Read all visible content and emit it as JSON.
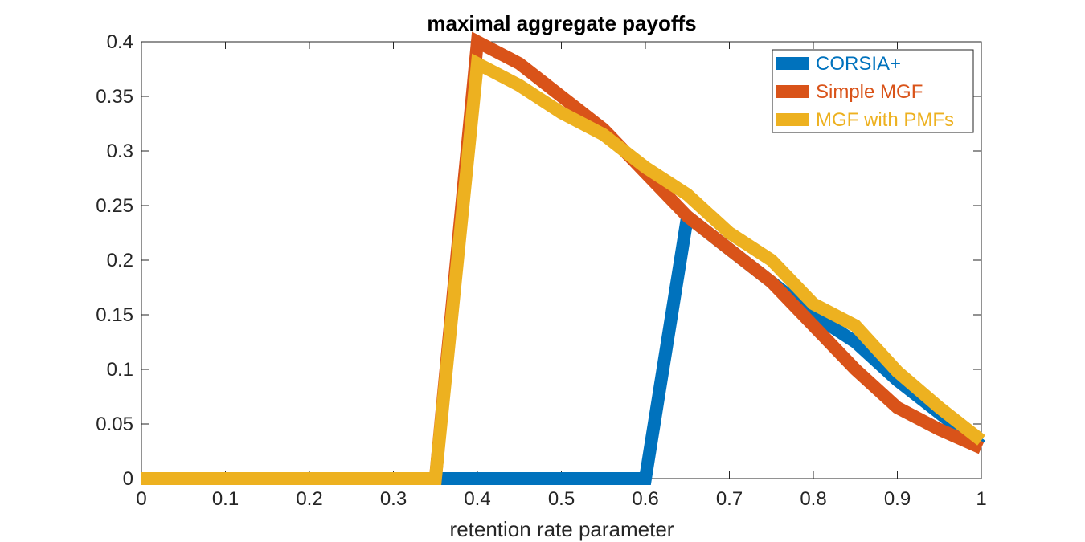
{
  "chart_data": {
    "type": "line",
    "title": "maximal aggregate payoffs",
    "xlabel": "retention rate parameter",
    "ylabel": "",
    "xlim": [
      0,
      1
    ],
    "ylim": [
      0,
      0.4
    ],
    "xticks": [
      "0",
      "0.1",
      "0.2",
      "0.3",
      "0.4",
      "0.5",
      "0.6",
      "0.7",
      "0.8",
      "0.9",
      "1"
    ],
    "yticks": [
      "0",
      "0.05",
      "0.1",
      "0.15",
      "0.2",
      "0.25",
      "0.3",
      "0.35",
      "0.4"
    ],
    "grid": false,
    "legend_position": "top-right",
    "x": [
      0,
      0.05,
      0.1,
      0.15,
      0.2,
      0.25,
      0.3,
      0.35,
      0.4,
      0.45,
      0.5,
      0.55,
      0.6,
      0.65,
      0.7,
      0.75,
      0.8,
      0.85,
      0.9,
      0.95,
      1
    ],
    "series": [
      {
        "name": "CORSIA+",
        "color": "#0072BD",
        "values": [
          0,
          0,
          0,
          0,
          0,
          0,
          0,
          0,
          0,
          0,
          0,
          0,
          0,
          0.24,
          0.21,
          0.18,
          0.15,
          0.125,
          0.09,
          0.06,
          0.03
        ]
      },
      {
        "name": "Simple MGF",
        "color": "#D95319",
        "values": [
          0,
          0,
          0,
          0,
          0,
          0,
          0,
          0,
          0.4,
          0.38,
          0.35,
          0.32,
          0.28,
          0.24,
          0.21,
          0.18,
          0.14,
          0.1,
          0.065,
          0.045,
          0.028
        ]
      },
      {
        "name": "MGF with PMFs",
        "color": "#EDB120",
        "values": [
          0,
          0,
          0,
          0,
          0,
          0,
          0,
          0,
          0.38,
          0.36,
          0.335,
          0.315,
          0.285,
          0.26,
          0.225,
          0.2,
          0.16,
          0.14,
          0.098,
          0.065,
          0.035
        ]
      }
    ]
  }
}
